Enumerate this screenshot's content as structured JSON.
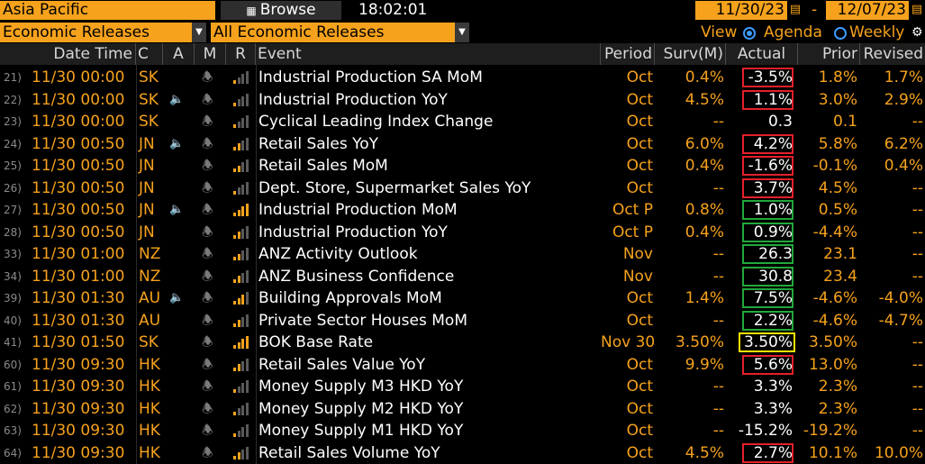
{
  "toolbar": {
    "region": "Asia Pacific",
    "browse_label": "Browse",
    "clock": "18:02:01",
    "start_date": "11/30/23",
    "end_date": "12/07/23",
    "date_separator": "-"
  },
  "filters": {
    "category": "Economic Releases",
    "releases": "All Economic Releases",
    "view_label": "View",
    "view_options": [
      "Agenda",
      "Weekly"
    ],
    "view_selected": "Agenda"
  },
  "columns": [
    "Date Time",
    "C",
    "A",
    "M",
    "R",
    "Event",
    "Period",
    "Surv(M)",
    "Actual",
    "Prior",
    "Revised"
  ],
  "colors": {
    "accent": "#f6a21c",
    "red_box": "#e4202a",
    "green_box": "#22a83a",
    "yellow_box": "#ffe400"
  },
  "rows": [
    {
      "num": "21)",
      "dt": "11/30 00:00",
      "c": "SK",
      "alert": false,
      "bars": 1,
      "event": "Industrial Production SA MoM",
      "period": "Oct",
      "surv": "0.4%",
      "actual": "-3.5%",
      "prior": "1.8%",
      "revised": "1.7%",
      "box": "red"
    },
    {
      "num": "22)",
      "dt": "11/30 00:00",
      "c": "SK",
      "alert": true,
      "bars": 1,
      "event": "Industrial Production YoY",
      "period": "Oct",
      "surv": "4.5%",
      "actual": "1.1%",
      "prior": "3.0%",
      "revised": "2.9%",
      "box": "red"
    },
    {
      "num": "23)",
      "dt": "11/30 00:00",
      "c": "SK",
      "alert": false,
      "bars": 1,
      "event": "Cyclical Leading Index Change",
      "period": "Oct",
      "surv": "--",
      "actual": "0.3",
      "prior": "0.1",
      "revised": "--",
      "box": ""
    },
    {
      "num": "24)",
      "dt": "11/30 00:50",
      "c": "JN",
      "alert": true,
      "bars": 2,
      "event": "Retail Sales YoY",
      "period": "Oct",
      "surv": "6.0%",
      "actual": "4.2%",
      "prior": "5.8%",
      "revised": "6.2%",
      "box": "red"
    },
    {
      "num": "25)",
      "dt": "11/30 00:50",
      "c": "JN",
      "alert": false,
      "bars": 2,
      "event": "Retail Sales MoM",
      "period": "Oct",
      "surv": "0.4%",
      "actual": "-1.6%",
      "prior": "-0.1%",
      "revised": "0.4%",
      "box": "red"
    },
    {
      "num": "26)",
      "dt": "11/30 00:50",
      "c": "JN",
      "alert": false,
      "bars": 1,
      "event": "Dept. Store, Supermarket Sales YoY",
      "period": "Oct",
      "surv": "--",
      "actual": "3.7%",
      "prior": "4.5%",
      "revised": "--",
      "box": "red"
    },
    {
      "num": "27)",
      "dt": "11/30 00:50",
      "c": "JN",
      "alert": true,
      "bars": 4,
      "event": "Industrial Production MoM",
      "period": "Oct P",
      "surv": "0.8%",
      "actual": "1.0%",
      "prior": "0.5%",
      "revised": "--",
      "box": "green"
    },
    {
      "num": "28)",
      "dt": "11/30 00:50",
      "c": "JN",
      "alert": false,
      "bars": 2,
      "event": "Industrial Production YoY",
      "period": "Oct P",
      "surv": "0.4%",
      "actual": "0.9%",
      "prior": "-4.4%",
      "revised": "--",
      "box": "green"
    },
    {
      "num": "33)",
      "dt": "11/30 01:00",
      "c": "NZ",
      "alert": false,
      "bars": 2,
      "event": "ANZ Activity Outlook",
      "period": "Nov",
      "surv": "--",
      "actual": "26.3",
      "prior": "23.1",
      "revised": "--",
      "box": "green"
    },
    {
      "num": "34)",
      "dt": "11/30 01:00",
      "c": "NZ",
      "alert": false,
      "bars": 2,
      "event": "ANZ Business Confidence",
      "period": "Nov",
      "surv": "--",
      "actual": "30.8",
      "prior": "23.4",
      "revised": "--",
      "box": "green"
    },
    {
      "num": "39)",
      "dt": "11/30 01:30",
      "c": "AU",
      "alert": true,
      "bars": 3,
      "event": "Building Approvals MoM",
      "period": "Oct",
      "surv": "1.4%",
      "actual": "7.5%",
      "prior": "-4.6%",
      "revised": "-4.0%",
      "box": "green"
    },
    {
      "num": "40)",
      "dt": "11/30 01:30",
      "c": "AU",
      "alert": false,
      "bars": 2,
      "event": "Private Sector Houses MoM",
      "period": "Oct",
      "surv": "--",
      "actual": "2.2%",
      "prior": "-4.6%",
      "revised": "-4.7%",
      "box": "green"
    },
    {
      "num": "41)",
      "dt": "11/30 01:50",
      "c": "SK",
      "alert": false,
      "bars": 4,
      "event": "BOK Base Rate",
      "period": "Nov 30",
      "surv": "3.50%",
      "actual": "3.50%",
      "prior": "3.50%",
      "revised": "--",
      "box": "yellow"
    },
    {
      "num": "60)",
      "dt": "11/30 09:30",
      "c": "HK",
      "alert": false,
      "bars": 2,
      "event": "Retail Sales Value YoY",
      "period": "Oct",
      "surv": "9.9%",
      "actual": "5.6%",
      "prior": "13.0%",
      "revised": "--",
      "box": "red"
    },
    {
      "num": "61)",
      "dt": "11/30 09:30",
      "c": "HK",
      "alert": false,
      "bars": 1,
      "event": "Money Supply M3 HKD YoY",
      "period": "Oct",
      "surv": "--",
      "actual": "3.3%",
      "prior": "2.3%",
      "revised": "--",
      "box": ""
    },
    {
      "num": "62)",
      "dt": "11/30 09:30",
      "c": "HK",
      "alert": false,
      "bars": 1,
      "event": "Money Supply M2 HKD YoY",
      "period": "Oct",
      "surv": "--",
      "actual": "3.3%",
      "prior": "2.3%",
      "revised": "--",
      "box": ""
    },
    {
      "num": "63)",
      "dt": "11/30 09:30",
      "c": "HK",
      "alert": false,
      "bars": 1,
      "event": "Money Supply M1 HKD YoY",
      "period": "Oct",
      "surv": "--",
      "actual": "-15.2%",
      "prior": "-19.2%",
      "revised": "--",
      "box": ""
    },
    {
      "num": "64)",
      "dt": "11/30 09:30",
      "c": "HK",
      "alert": false,
      "bars": 2,
      "event": "Retail Sales Volume YoY",
      "period": "Oct",
      "surv": "4.5%",
      "actual": "2.7%",
      "prior": "10.1%",
      "revised": "10.0%",
      "box": "red"
    }
  ]
}
